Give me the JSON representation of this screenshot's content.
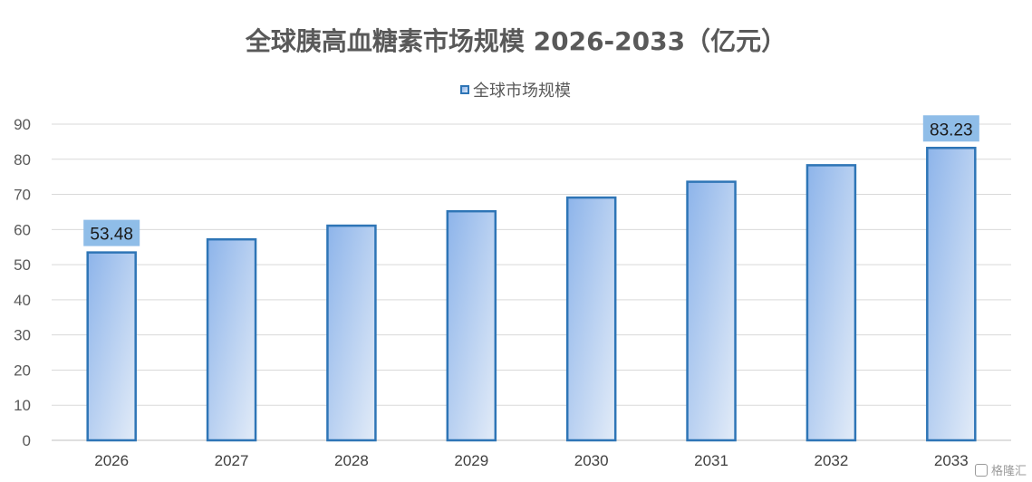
{
  "chart_data": {
    "type": "bar",
    "title": "全球胰高血糖素市场规模 2026-2033（亿元）",
    "categories": [
      "2026",
      "2027",
      "2028",
      "2029",
      "2030",
      "2031",
      "2032",
      "2033"
    ],
    "series": [
      {
        "name": "全球市场规模",
        "values": [
          53.48,
          57.2,
          61.1,
          65.2,
          69.1,
          73.6,
          78.3,
          83.23
        ]
      }
    ],
    "data_labels": [
      {
        "category": "2026",
        "text": "53.48"
      },
      {
        "category": "2033",
        "text": "83.23"
      }
    ],
    "ylim": [
      0,
      90
    ],
    "yticks": [
      0,
      10,
      20,
      30,
      40,
      50,
      60,
      70,
      80,
      90
    ],
    "grid": true,
    "legend_position": "top-center",
    "colors": {
      "bar_border": "#2e75b6",
      "bar_fill_start": "#8db4ea",
      "bar_fill_end": "#e3ecf8",
      "label_box": "#8fbde8",
      "grid": "#d9d9d9",
      "text": "#595959"
    }
  },
  "watermark": {
    "text": "格隆汇"
  }
}
